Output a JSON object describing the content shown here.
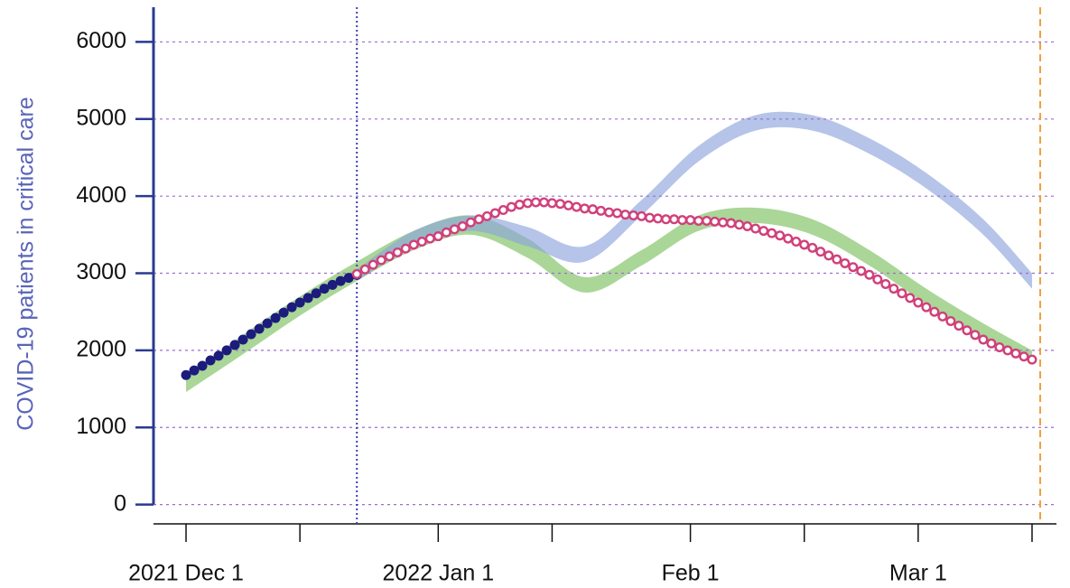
{
  "chart_data": {
    "type": "line",
    "y_label": "COVID-19 patients in critical care",
    "xlim": [
      "2021-11-27",
      "2022-03-18"
    ],
    "xticks": [
      {
        "value": "2021-12-01",
        "label": "2021 Dec 1"
      },
      {
        "value": "2022-01-01",
        "label": "2022 Jan 1"
      },
      {
        "value": "2022-02-01",
        "label": "Feb 1"
      },
      {
        "value": "2022-03-01",
        "label": "Mar 1"
      }
    ],
    "minor_xticks": [
      "2021-12-15",
      "2022-01-15",
      "2022-02-15",
      "2022-03-15"
    ],
    "ylim": [
      -250,
      6450
    ],
    "yticks": [
      0,
      1000,
      2000,
      3000,
      4000,
      5000,
      6000
    ],
    "grid": true,
    "vlines": [
      {
        "x": "2021-12-22",
        "color": "#3c3cb4",
        "style": "dotted"
      },
      {
        "x": "2022-03-16",
        "color": "#f0a040",
        "style": "dashed"
      }
    ],
    "bands": [
      {
        "color": "#7cc060",
        "x": [
          "2021-12-01",
          "2021-12-08",
          "2021-12-15",
          "2021-12-22",
          "2021-12-29",
          "2022-01-05",
          "2022-01-12",
          "2022-01-19",
          "2022-01-26",
          "2022-02-02",
          "2022-02-09",
          "2022-02-16",
          "2022-02-23",
          "2022-03-02",
          "2022-03-09",
          "2022-03-15"
        ],
        "lower": [
          1460,
          1950,
          2450,
          2900,
          3300,
          3500,
          3200,
          2750,
          3100,
          3550,
          3650,
          3500,
          3100,
          2600,
          2150,
          1850
        ],
        "upper": [
          1640,
          2200,
          2700,
          3150,
          3550,
          3750,
          3450,
          2950,
          3300,
          3750,
          3850,
          3700,
          3300,
          2800,
          2350,
          2000
        ]
      },
      {
        "color": "#8ea4dc",
        "x": [
          "2021-12-22",
          "2021-12-29",
          "2022-01-05",
          "2022-01-12",
          "2022-01-19",
          "2022-01-26",
          "2022-02-02",
          "2022-02-09",
          "2022-02-16",
          "2022-02-23",
          "2022-03-02",
          "2022-03-09",
          "2022-03-15"
        ],
        "lower": [
          2900,
          3350,
          3550,
          3350,
          3150,
          3750,
          4450,
          4850,
          4850,
          4550,
          4100,
          3500,
          2800
        ],
        "upper": [
          3050,
          3550,
          3750,
          3600,
          3350,
          3950,
          4650,
          5050,
          5050,
          4750,
          4300,
          3700,
          3000
        ]
      }
    ],
    "series": [
      {
        "color": "#1c1c7c",
        "marker": "filled",
        "x": [
          "2021-12-01",
          "2021-12-02",
          "2021-12-03",
          "2021-12-04",
          "2021-12-05",
          "2021-12-06",
          "2021-12-07",
          "2021-12-08",
          "2021-12-09",
          "2021-12-10",
          "2021-12-11",
          "2021-12-12",
          "2021-12-13",
          "2021-12-14",
          "2021-12-15",
          "2021-12-16",
          "2021-12-17",
          "2021-12-18",
          "2021-12-19",
          "2021-12-20",
          "2021-12-21",
          "2021-12-22"
        ],
        "values": [
          1680,
          1740,
          1800,
          1870,
          1930,
          2000,
          2070,
          2140,
          2210,
          2280,
          2350,
          2420,
          2490,
          2560,
          2620,
          2680,
          2740,
          2800,
          2850,
          2900,
          2940,
          2980
        ]
      },
      {
        "color": "#d0407a",
        "marker": "open",
        "x": [
          "2021-12-22",
          "2021-12-23",
          "2021-12-24",
          "2021-12-25",
          "2021-12-26",
          "2021-12-27",
          "2021-12-28",
          "2021-12-29",
          "2021-12-30",
          "2021-12-31",
          "2022-01-01",
          "2022-01-02",
          "2022-01-03",
          "2022-01-04",
          "2022-01-05",
          "2022-01-06",
          "2022-01-07",
          "2022-01-08",
          "2022-01-09",
          "2022-01-10",
          "2022-01-11",
          "2022-01-12",
          "2022-01-13",
          "2022-01-14",
          "2022-01-15",
          "2022-01-16",
          "2022-01-17",
          "2022-01-18",
          "2022-01-19",
          "2022-01-20",
          "2022-01-21",
          "2022-01-22",
          "2022-01-23",
          "2022-01-24",
          "2022-01-25",
          "2022-01-26",
          "2022-01-27",
          "2022-01-28",
          "2022-01-29",
          "2022-01-30",
          "2022-01-31",
          "2022-02-01",
          "2022-02-02",
          "2022-02-03",
          "2022-02-04",
          "2022-02-05",
          "2022-02-06",
          "2022-02-07",
          "2022-02-08",
          "2022-02-09",
          "2022-02-10",
          "2022-02-11",
          "2022-02-12",
          "2022-02-13",
          "2022-02-14",
          "2022-02-15",
          "2022-02-16",
          "2022-02-17",
          "2022-02-18",
          "2022-02-19",
          "2022-02-20",
          "2022-02-21",
          "2022-02-22",
          "2022-02-23",
          "2022-02-24",
          "2022-02-25",
          "2022-02-26",
          "2022-02-27",
          "2022-02-28",
          "2022-03-01",
          "2022-03-02",
          "2022-03-03",
          "2022-03-04",
          "2022-03-05",
          "2022-03-06",
          "2022-03-07",
          "2022-03-08",
          "2022-03-09",
          "2022-03-10",
          "2022-03-11",
          "2022-03-12",
          "2022-03-13",
          "2022-03-14",
          "2022-03-15"
        ],
        "values": [
          2990,
          3050,
          3110,
          3170,
          3220,
          3270,
          3320,
          3370,
          3410,
          3450,
          3480,
          3530,
          3570,
          3610,
          3660,
          3700,
          3740,
          3780,
          3820,
          3860,
          3890,
          3910,
          3920,
          3920,
          3910,
          3900,
          3880,
          3860,
          3840,
          3830,
          3810,
          3790,
          3780,
          3760,
          3750,
          3740,
          3720,
          3710,
          3700,
          3700,
          3690,
          3690,
          3680,
          3680,
          3670,
          3660,
          3650,
          3630,
          3610,
          3580,
          3550,
          3520,
          3490,
          3450,
          3410,
          3370,
          3330,
          3280,
          3230,
          3180,
          3130,
          3080,
          3030,
          2980,
          2920,
          2860,
          2800,
          2740,
          2680,
          2620,
          2560,
          2500,
          2440,
          2380,
          2320,
          2260,
          2200,
          2140,
          2090,
          2040,
          2000,
          1960,
          1920,
          1880
        ]
      }
    ]
  }
}
